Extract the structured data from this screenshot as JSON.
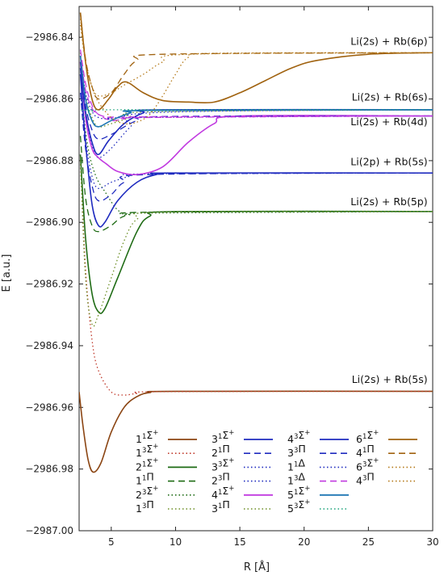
{
  "chart_data": {
    "type": "line",
    "xlabel": "R [Å]",
    "ylabel": "E [a.u.]",
    "xlim": [
      2.5,
      30
    ],
    "ylim": [
      -2987.0,
      -2986.83
    ],
    "xticks": [
      5,
      10,
      15,
      20,
      25,
      30
    ],
    "yticks": [
      -2987.0,
      -2986.98,
      -2986.96,
      -2986.94,
      -2986.92,
      -2986.9,
      -2986.88,
      -2986.86,
      -2986.84
    ],
    "xtick_labels": [
      "5",
      "10",
      "15",
      "20",
      "25",
      "30"
    ],
    "ytick_labels": [
      "−2987.00",
      "−2986.98",
      "−2986.96",
      "−2986.94",
      "−2986.92",
      "−2986.90",
      "−2986.88",
      "−2986.86",
      "−2986.84"
    ],
    "grid": false,
    "legend_position": "bottom-right",
    "annotations": [
      {
        "text": "Li(2s) + Rb(6p)",
        "x": 29.6,
        "y": -2986.8425
      },
      {
        "text": "Li(2s) + Rb(6s)",
        "x": 29.6,
        "y": -2986.8605
      },
      {
        "text": "Li(2s) + Rb(4d)",
        "x": 29.6,
        "y": -2986.8685
      },
      {
        "text": "Li(2p) + Rb(5s)",
        "x": 29.6,
        "y": -2986.8815
      },
      {
        "text": "Li(2s) + Rb(5p)",
        "x": 29.6,
        "y": -2986.8945
      },
      {
        "text": "Li(2s) + Rb(5s)",
        "x": 29.6,
        "y": -2986.952
      }
    ],
    "series": [
      {
        "name": "1¹Σ⁺",
        "color": "#8b4513",
        "dash": "solid",
        "points": [
          [
            2.5,
            -2986.955
          ],
          [
            2.8,
            -2986.966
          ],
          [
            3.2,
            -2986.977
          ],
          [
            3.6,
            -2986.981
          ],
          [
            4.2,
            -2986.978
          ],
          [
            5,
            -2986.968
          ],
          [
            6,
            -2986.96
          ],
          [
            7,
            -2986.9565
          ],
          [
            8,
            -2986.9552
          ],
          [
            10,
            -2986.9548
          ],
          [
            30,
            -2986.9548
          ]
        ]
      },
      {
        "name": "1³Σ⁺",
        "color": "#c0392b",
        "dash": "dot",
        "points": [
          [
            2.6,
            -2986.88
          ],
          [
            3,
            -2986.915
          ],
          [
            3.5,
            -2986.938
          ],
          [
            4,
            -2986.948
          ],
          [
            5,
            -2986.955
          ],
          [
            6,
            -2986.956
          ],
          [
            7,
            -2986.9555
          ],
          [
            9,
            -2986.9549
          ],
          [
            30,
            -2986.9548
          ]
        ]
      },
      {
        "name": "2¹Σ⁺",
        "color": "#1e6b14",
        "dash": "solid",
        "points": [
          [
            2.6,
            -2986.878
          ],
          [
            3,
            -2986.905
          ],
          [
            3.5,
            -2986.923
          ],
          [
            4,
            -2986.929
          ],
          [
            4.5,
            -2986.928
          ],
          [
            5.5,
            -2986.918
          ],
          [
            7,
            -2986.903
          ],
          [
            8,
            -2986.898
          ],
          [
            10,
            -2986.8965
          ],
          [
            30,
            -2986.8965
          ]
        ]
      },
      {
        "name": "1¹Π",
        "color": "#1e6b14",
        "dash": "dash",
        "points": [
          [
            2.6,
            -2986.872
          ],
          [
            3,
            -2986.892
          ],
          [
            3.5,
            -2986.901
          ],
          [
            4,
            -2986.903
          ],
          [
            5,
            -2986.901
          ],
          [
            6,
            -2986.898
          ],
          [
            8,
            -2986.8967
          ],
          [
            30,
            -2986.8965
          ]
        ]
      },
      {
        "name": "2³Σ⁺",
        "color": "#1e6b14",
        "dash": "dot",
        "points": [
          [
            2.7,
            -2986.86
          ],
          [
            3.2,
            -2986.876
          ],
          [
            3.8,
            -2986.885
          ],
          [
            4.5,
            -2986.89
          ],
          [
            5.5,
            -2986.896
          ],
          [
            6.5,
            -2986.8975
          ],
          [
            8,
            -2986.897
          ],
          [
            30,
            -2986.8965
          ]
        ]
      },
      {
        "name": "1³Π",
        "color": "#6b8e23",
        "dash": "dot",
        "points": [
          [
            2.6,
            -2986.88
          ],
          [
            3,
            -2986.918
          ],
          [
            3.5,
            -2986.933
          ],
          [
            4,
            -2986.93
          ],
          [
            5,
            -2986.918
          ],
          [
            6,
            -2986.906
          ],
          [
            7,
            -2986.899
          ],
          [
            9,
            -2986.8967
          ],
          [
            30,
            -2986.8965
          ]
        ]
      },
      {
        "name": "3¹Σ⁺",
        "color": "#1f2bbf",
        "dash": "solid",
        "points": [
          [
            2.6,
            -2986.852
          ],
          [
            3,
            -2986.874
          ],
          [
            3.5,
            -2986.894
          ],
          [
            4,
            -2986.901
          ],
          [
            4.5,
            -2986.9
          ],
          [
            5.5,
            -2986.893
          ],
          [
            7,
            -2986.887
          ],
          [
            8.5,
            -2986.8845
          ],
          [
            10,
            -2986.884
          ],
          [
            30,
            -2986.884
          ]
        ]
      },
      {
        "name": "2¹Π",
        "color": "#1f2bbf",
        "dash": "dash",
        "points": [
          [
            2.6,
            -2986.858
          ],
          [
            3,
            -2986.876
          ],
          [
            3.5,
            -2986.888
          ],
          [
            4,
            -2986.893
          ],
          [
            5,
            -2986.891
          ],
          [
            6,
            -2986.887
          ],
          [
            8,
            -2986.8845
          ],
          [
            30,
            -2986.884
          ]
        ]
      },
      {
        "name": "3³Σ⁺",
        "color": "#1f2bbf",
        "dash": "dot",
        "points": [
          [
            2.6,
            -2986.858
          ],
          [
            3,
            -2986.873
          ],
          [
            3.5,
            -2986.885
          ],
          [
            4,
            -2986.889
          ],
          [
            5,
            -2986.887
          ],
          [
            6.5,
            -2986.885
          ],
          [
            8,
            -2986.8843
          ],
          [
            30,
            -2986.884
          ]
        ]
      },
      {
        "name": "2³Π",
        "color": "#1f2bbf",
        "dash": "dot",
        "points": [
          [
            2.6,
            -2986.85
          ],
          [
            3,
            -2986.866
          ],
          [
            3.5,
            -2986.875
          ],
          [
            4,
            -2986.879
          ],
          [
            5,
            -2986.876
          ],
          [
            6.5,
            -2986.869
          ],
          [
            8,
            -2986.8645
          ],
          [
            30,
            -2986.8635
          ]
        ]
      },
      {
        "name": "3¹Π",
        "color": "#6b8e23",
        "dash": "dot",
        "points": [
          [
            2.6,
            -2986.845
          ],
          [
            3,
            -2986.859
          ],
          [
            3.5,
            -2986.866
          ],
          [
            4,
            -2986.869
          ],
          [
            5,
            -2986.868
          ],
          [
            6.5,
            -2986.866
          ],
          [
            8,
            -2986.8642
          ],
          [
            30,
            -2986.8635
          ]
        ]
      },
      {
        "name": "4¹Σ⁺",
        "color": "#c13ae0",
        "dash": "solid",
        "points": [
          [
            2.6,
            -2986.848
          ],
          [
            3,
            -2986.866
          ],
          [
            3.5,
            -2986.876
          ],
          [
            4,
            -2986.879
          ],
          [
            4.6,
            -2986.881
          ],
          [
            5.5,
            -2986.8835
          ],
          [
            7,
            -2986.8845
          ],
          [
            9,
            -2986.882
          ],
          [
            11,
            -2986.874
          ],
          [
            13,
            -2986.868
          ],
          [
            15,
            -2986.8655
          ],
          [
            30,
            -2986.8655
          ]
        ]
      },
      {
        "name": "4³Σ⁺",
        "color": "#1f2bbf",
        "dash": "solid",
        "points": [
          [
            2.6,
            -2986.85
          ],
          [
            3,
            -2986.864
          ],
          [
            3.5,
            -2986.874
          ],
          [
            4,
            -2986.878
          ],
          [
            4.8,
            -2986.8735
          ],
          [
            6,
            -2986.868
          ],
          [
            7.5,
            -2986.8645
          ],
          [
            9,
            -2986.8635
          ],
          [
            30,
            -2986.8635
          ]
        ]
      },
      {
        "name": "3³Π",
        "color": "#1f2bbf",
        "dash": "dash",
        "points": [
          [
            2.6,
            -2986.848
          ],
          [
            3,
            -2986.862
          ],
          [
            3.5,
            -2986.87
          ],
          [
            4,
            -2986.873
          ],
          [
            5,
            -2986.8715
          ],
          [
            7,
            -2986.867
          ],
          [
            9,
            -2986.8657
          ],
          [
            30,
            -2986.8655
          ]
        ]
      },
      {
        "name": "1¹Δ",
        "color": "#1f2bbf",
        "dash": "dot",
        "points": [
          [
            2.6,
            -2986.846
          ],
          [
            3,
            -2986.858
          ],
          [
            3.5,
            -2986.864
          ],
          [
            4,
            -2986.866
          ],
          [
            5,
            -2986.8665
          ],
          [
            7,
            -2986.866
          ],
          [
            30,
            -2986.8655
          ]
        ]
      },
      {
        "name": "1³Δ",
        "color": "#c13ae0",
        "dash": "dash",
        "points": [
          [
            2.6,
            -2986.846
          ],
          [
            3,
            -2986.857
          ],
          [
            3.5,
            -2986.863
          ],
          [
            4,
            -2986.865
          ],
          [
            5,
            -2986.866
          ],
          [
            7,
            -2986.8658
          ],
          [
            30,
            -2986.8655
          ]
        ]
      },
      {
        "name": "5¹Σ⁺",
        "color": "#1f77b4",
        "dash": "solid",
        "points": [
          [
            2.6,
            -2986.846
          ],
          [
            3,
            -2986.86
          ],
          [
            3.5,
            -2986.867
          ],
          [
            4,
            -2986.869
          ],
          [
            5,
            -2986.867
          ],
          [
            6.5,
            -2986.8645
          ],
          [
            8,
            -2986.8637
          ],
          [
            30,
            -2986.8635
          ]
        ]
      },
      {
        "name": "5³Σ⁺",
        "color": "#c13ae0",
        "dash": "dash",
        "points": [
          [
            2.6,
            -2986.844
          ],
          [
            3,
            -2986.855
          ],
          [
            3.5,
            -2986.862
          ],
          [
            4,
            -2986.865
          ],
          [
            5,
            -2986.867
          ],
          [
            6,
            -2986.8665
          ],
          [
            8,
            -2986.866
          ],
          [
            30,
            -2986.8655
          ]
        ]
      },
      {
        "name": "5³Σ⁺ (green)",
        "color": "#1aa37a",
        "dash": "dot",
        "points": [
          [
            2.8,
            -2986.866
          ],
          [
            3.5,
            -2986.864
          ],
          [
            5,
            -2986.8635
          ],
          [
            30,
            -2986.8635
          ]
        ]
      },
      {
        "name": "6¹Σ⁺",
        "color": "#a0620f",
        "dash": "solid",
        "points": [
          [
            2.6,
            -2986.832
          ],
          [
            3,
            -2986.848
          ],
          [
            3.5,
            -2986.86
          ],
          [
            4,
            -2986.8635
          ],
          [
            4.8,
            -2986.86
          ],
          [
            5.5,
            -2986.856
          ],
          [
            6.2,
            -2986.8545
          ],
          [
            7.5,
            -2986.858
          ],
          [
            9,
            -2986.8605
          ],
          [
            11,
            -2986.861
          ],
          [
            13,
            -2986.861
          ],
          [
            15,
            -2986.858
          ],
          [
            17,
            -2986.854
          ],
          [
            19,
            -2986.85
          ],
          [
            21,
            -2986.8475
          ],
          [
            25,
            -2986.8455
          ],
          [
            30,
            -2986.845
          ]
        ]
      },
      {
        "name": "6³Σ⁺",
        "color": "#b57a1a",
        "dash": "dot",
        "points": [
          [
            2.6,
            -2986.836
          ],
          [
            3,
            -2986.848
          ],
          [
            3.5,
            -2986.856
          ],
          [
            4,
            -2986.861
          ],
          [
            5,
            -2986.866
          ],
          [
            6,
            -2986.868
          ],
          [
            7,
            -2986.8675
          ],
          [
            8,
            -2986.865
          ],
          [
            9,
            -2986.859
          ],
          [
            10,
            -2986.852
          ],
          [
            11,
            -2986.8465
          ],
          [
            13,
            -2986.8452
          ],
          [
            30,
            -2986.845
          ]
        ]
      },
      {
        "name": "4¹Π",
        "color": "#a0620f",
        "dash": "dash",
        "points": [
          [
            2.6,
            -2986.832
          ],
          [
            3,
            -2986.847
          ],
          [
            3.5,
            -2986.856
          ],
          [
            4,
            -2986.86
          ],
          [
            5,
            -2986.858
          ],
          [
            6,
            -2986.852
          ],
          [
            7,
            -2986.8475
          ],
          [
            9,
            -2986.8455
          ],
          [
            30,
            -2986.845
          ]
        ]
      },
      {
        "name": "4³Π",
        "color": "#b57a1a",
        "dash": "dot",
        "points": [
          [
            2.6,
            -2986.834
          ],
          [
            3,
            -2986.848
          ],
          [
            3.5,
            -2986.856
          ],
          [
            4,
            -2986.859
          ],
          [
            5,
            -2986.858
          ],
          [
            6,
            -2986.8555
          ],
          [
            7.5,
            -2986.852
          ],
          [
            9,
            -2986.848
          ],
          [
            11,
            -2986.8455
          ],
          [
            30,
            -2986.845
          ]
        ]
      }
    ],
    "legend": [
      [
        "1¹Σ⁺",
        "3¹Σ⁺",
        "4³Σ⁺",
        "6¹Σ⁺"
      ],
      [
        "1³Σ⁺",
        "2¹Π",
        "3³Π",
        "4¹Π"
      ],
      [
        "2¹Σ⁺",
        "3³Σ⁺",
        "1¹Δ",
        "6³Σ⁺"
      ],
      [
        "1¹Π",
        "2³Π",
        "1³Δ",
        "4³Π"
      ],
      [
        "2³Σ⁺",
        "4¹Σ⁺",
        "5¹Σ⁺",
        ""
      ],
      [
        "1³Π",
        "3¹Π",
        "5³Σ⁺",
        ""
      ]
    ]
  }
}
